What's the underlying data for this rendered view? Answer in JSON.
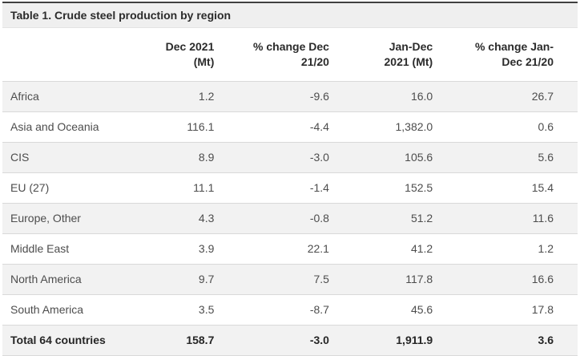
{
  "chart_data": {
    "type": "table",
    "title": "Table 1. Crude steel production by region",
    "column_headers": [
      "Dec 2021\n(Mt)",
      "% change Dec\n21/20",
      "Jan-Dec\n2021 (Mt)",
      "% change Jan-\nDec 21/20"
    ],
    "rows": [
      {
        "region": "Africa",
        "values": [
          "1.2",
          "-9.6",
          "16.0",
          "26.7"
        ]
      },
      {
        "region": "Asia and Oceania",
        "values": [
          "116.1",
          "-4.4",
          "1,382.0",
          "0.6"
        ]
      },
      {
        "region": "CIS",
        "values": [
          "8.9",
          "-3.0",
          "105.6",
          "5.6"
        ]
      },
      {
        "region": "EU (27)",
        "values": [
          "11.1",
          "-1.4",
          "152.5",
          "15.4"
        ]
      },
      {
        "region": "Europe, Other",
        "values": [
          "4.3",
          "-0.8",
          "51.2",
          "11.6"
        ]
      },
      {
        "region": "Middle East",
        "values": [
          "3.9",
          "22.1",
          "41.2",
          "1.2"
        ]
      },
      {
        "region": "North America",
        "values": [
          "9.7",
          "7.5",
          "117.8",
          "16.6"
        ]
      },
      {
        "region": "South America",
        "values": [
          "3.5",
          "-8.7",
          "45.6",
          "17.8"
        ]
      }
    ],
    "total_row": {
      "region": "Total 64 countries",
      "values": [
        "158.7",
        "-3.0",
        "1,911.9",
        "3.6"
      ]
    }
  },
  "colors": {
    "top_border": "#404040",
    "title_bar_bg": "#efefef",
    "row_alt": "#f2f2f2",
    "row_border": "#d9d9d9"
  }
}
